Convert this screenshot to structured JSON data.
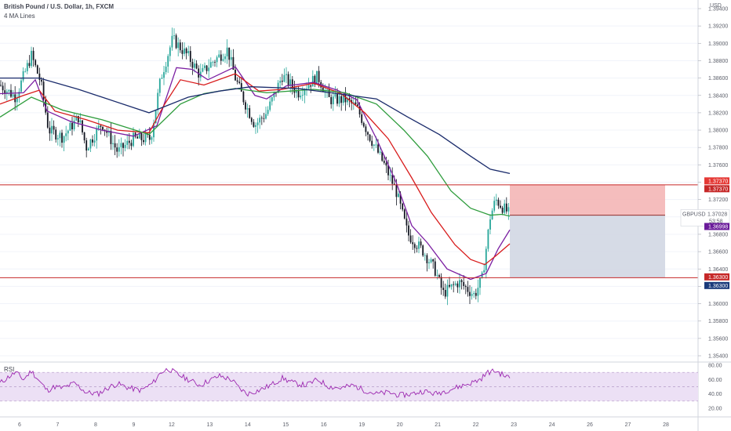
{
  "header": {
    "symbol_title": "British Pound / U.S. Dollar, 1h, FXCM",
    "indicator": "4 MA Lines"
  },
  "axis": {
    "currency": "USD",
    "y_ticks": [
      "1.35400",
      "1.35600",
      "1.35800",
      "1.36000",
      "1.36200",
      "1.36400",
      "1.36600",
      "1.36800",
      "1.37000",
      "1.37200",
      "1.37400",
      "1.37600",
      "1.37800",
      "1.38000",
      "1.38200",
      "1.38400",
      "1.38600",
      "1.38800",
      "1.39000",
      "1.39200",
      "1.39400"
    ],
    "x_ticks": [
      "6",
      "7",
      "8",
      "9",
      "12",
      "13",
      "14",
      "15",
      "16",
      "19",
      "20",
      "21",
      "22",
      "23",
      "24",
      "26",
      "27",
      "28"
    ],
    "price_label": "GBPUSD",
    "price_value": "1.37028",
    "countdown": "53:58",
    "ma_value": "1.36998",
    "upper_line_tags": [
      "1.37370",
      "1.37370"
    ],
    "lower_line_tags": [
      "1.36300",
      "1.36300"
    ]
  },
  "rsi": {
    "title": "RSI",
    "ticks": [
      "80.00",
      "60.00",
      "40.00",
      "20.00"
    ]
  },
  "colors": {
    "up": "#26a69a",
    "down": "#131722",
    "ma_purple": "#7b1fa2",
    "ma_red": "#d81b1b",
    "ma_green": "#2e9c3c",
    "ma_navy": "#1a2b6b",
    "level_line": "#c62828",
    "stop_zone": "#f4b6b6",
    "target_zone": "#d1d7e3",
    "rsi_line": "#9c27b0",
    "rsi_band": "#ece0f5"
  },
  "chart_data": {
    "type": "candlestick",
    "price_path": [
      [
        0,
        1.3852
      ],
      [
        20,
        1.3838
      ],
      [
        40,
        1.3886
      ],
      [
        52,
        1.3855
      ],
      [
        62,
        1.38
      ],
      [
        80,
        1.3792
      ],
      [
        100,
        1.3815
      ],
      [
        110,
        1.378
      ],
      [
        130,
        1.3808
      ],
      [
        150,
        1.3775
      ],
      [
        170,
        1.379
      ],
      [
        192,
        1.379
      ],
      [
        205,
        1.386
      ],
      [
        220,
        1.3905
      ],
      [
        240,
        1.3885
      ],
      [
        255,
        1.3863
      ],
      [
        270,
        1.3878
      ],
      [
        290,
        1.3893
      ],
      [
        300,
        1.386
      ],
      [
        312,
        1.3832
      ],
      [
        325,
        1.3806
      ],
      [
        340,
        1.382
      ],
      [
        360,
        1.3863
      ],
      [
        380,
        1.3843
      ],
      [
        405,
        1.3862
      ],
      [
        420,
        1.3835
      ],
      [
        440,
        1.3835
      ],
      [
        455,
        1.3826
      ],
      [
        470,
        1.3795
      ],
      [
        490,
        1.376
      ],
      [
        505,
        1.373
      ],
      [
        520,
        1.368
      ],
      [
        540,
        1.366
      ],
      [
        555,
        1.3638
      ],
      [
        565,
        1.3612
      ],
      [
        585,
        1.3625
      ],
      [
        605,
        1.361
      ],
      [
        615,
        1.363
      ],
      [
        625,
        1.37
      ],
      [
        632,
        1.372
      ],
      [
        642,
        1.371
      ],
      [
        650,
        1.3703
      ]
    ],
    "ma_lines": [
      {
        "path": [
          [
            0,
            1.3842
          ],
          [
            30,
            1.3843
          ],
          [
            45,
            1.3858
          ],
          [
            60,
            1.3822
          ],
          [
            90,
            1.381
          ],
          [
            130,
            1.38
          ],
          [
            170,
            1.3793
          ],
          [
            200,
            1.3805
          ],
          [
            225,
            1.3872
          ],
          [
            245,
            1.387
          ],
          [
            265,
            1.3858
          ],
          [
            300,
            1.3873
          ],
          [
            325,
            1.384
          ],
          [
            340,
            1.3836
          ],
          [
            365,
            1.3851
          ],
          [
            400,
            1.3855
          ],
          [
            430,
            1.3846
          ],
          [
            455,
            1.3835
          ],
          [
            480,
            1.379
          ],
          [
            505,
            1.374
          ],
          [
            525,
            1.369
          ],
          [
            545,
            1.367
          ],
          [
            570,
            1.364
          ],
          [
            600,
            1.3628
          ],
          [
            620,
            1.3635
          ],
          [
            635,
            1.3663
          ],
          [
            650,
            1.3685
          ]
        ]
      },
      {
        "path": [
          [
            0,
            1.383
          ],
          [
            30,
            1.384
          ],
          [
            50,
            1.3846
          ],
          [
            70,
            1.3822
          ],
          [
            110,
            1.3812
          ],
          [
            150,
            1.38
          ],
          [
            190,
            1.3797
          ],
          [
            210,
            1.383
          ],
          [
            230,
            1.3858
          ],
          [
            260,
            1.3852
          ],
          [
            300,
            1.3865
          ],
          [
            330,
            1.3845
          ],
          [
            360,
            1.3847
          ],
          [
            400,
            1.3854
          ],
          [
            435,
            1.3842
          ],
          [
            465,
            1.382
          ],
          [
            495,
            1.379
          ],
          [
            525,
            1.3745
          ],
          [
            550,
            1.3705
          ],
          [
            580,
            1.3668
          ],
          [
            600,
            1.3651
          ],
          [
            618,
            1.3645
          ],
          [
            632,
            1.3655
          ],
          [
            650,
            1.3669
          ]
        ]
      },
      {
        "path": [
          [
            0,
            1.3815
          ],
          [
            40,
            1.3838
          ],
          [
            80,
            1.3823
          ],
          [
            130,
            1.3812
          ],
          [
            190,
            1.3795
          ],
          [
            230,
            1.383
          ],
          [
            260,
            1.3842
          ],
          [
            300,
            1.3848
          ],
          [
            340,
            1.3843
          ],
          [
            400,
            1.3847
          ],
          [
            440,
            1.3843
          ],
          [
            480,
            1.383
          ],
          [
            515,
            1.38
          ],
          [
            545,
            1.377
          ],
          [
            575,
            1.373
          ],
          [
            600,
            1.371
          ],
          [
            625,
            1.3702
          ],
          [
            640,
            1.3703
          ],
          [
            650,
            1.3701
          ]
        ]
      },
      {
        "path": [
          [
            0,
            1.386
          ],
          [
            50,
            1.386
          ],
          [
            100,
            1.3847
          ],
          [
            140,
            1.3835
          ],
          [
            190,
            1.382
          ],
          [
            240,
            1.3838
          ],
          [
            280,
            1.3845
          ],
          [
            320,
            1.385
          ],
          [
            380,
            1.3848
          ],
          [
            430,
            1.3842
          ],
          [
            480,
            1.3836
          ],
          [
            520,
            1.3815
          ],
          [
            560,
            1.3795
          ],
          [
            600,
            1.377
          ],
          [
            625,
            1.3755
          ],
          [
            650,
            1.375
          ]
        ]
      }
    ],
    "levels": [
      1.3737,
      1.363
    ],
    "stop_zone": [
      1.3737,
      1.3702
    ],
    "target_zone": [
      1.3702,
      1.363
    ],
    "rsi_path": [
      [
        0,
        55
      ],
      [
        10,
        63
      ],
      [
        20,
        70
      ],
      [
        30,
        60
      ],
      [
        40,
        72
      ],
      [
        50,
        58
      ],
      [
        60,
        45
      ],
      [
        70,
        50
      ],
      [
        80,
        48
      ],
      [
        95,
        55
      ],
      [
        110,
        42
      ],
      [
        125,
        40
      ],
      [
        140,
        50
      ],
      [
        150,
        54
      ],
      [
        165,
        48
      ],
      [
        180,
        45
      ],
      [
        195,
        55
      ],
      [
        205,
        70
      ],
      [
        215,
        75
      ],
      [
        225,
        68
      ],
      [
        240,
        60
      ],
      [
        255,
        52
      ],
      [
        265,
        58
      ],
      [
        280,
        65
      ],
      [
        295,
        60
      ],
      [
        305,
        48
      ],
      [
        315,
        40
      ],
      [
        330,
        45
      ],
      [
        345,
        52
      ],
      [
        360,
        62
      ],
      [
        375,
        55
      ],
      [
        390,
        52
      ],
      [
        405,
        60
      ],
      [
        420,
        50
      ],
      [
        435,
        48
      ],
      [
        450,
        52
      ],
      [
        465,
        45
      ],
      [
        480,
        40
      ],
      [
        495,
        42
      ],
      [
        510,
        38
      ],
      [
        525,
        40
      ],
      [
        540,
        44
      ],
      [
        555,
        40
      ],
      [
        570,
        45
      ],
      [
        585,
        50
      ],
      [
        600,
        55
      ],
      [
        612,
        60
      ],
      [
        622,
        70
      ],
      [
        632,
        72
      ],
      [
        642,
        66
      ],
      [
        650,
        62
      ]
    ]
  }
}
